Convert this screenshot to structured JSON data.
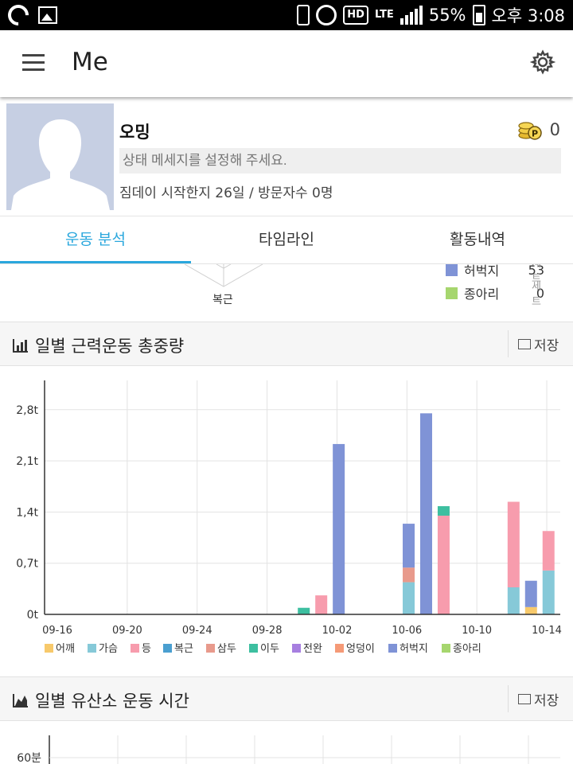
{
  "status_bar": {
    "battery": "55%",
    "time": "오후 3:08",
    "network": "LTE"
  },
  "app_bar": {
    "title": "Me"
  },
  "profile": {
    "name": "오밍",
    "points": "0",
    "status_placeholder": "상태 메세지를 설정해 주세요.",
    "subtitle": "짐데이 시작한지 26일  / 방문자수 0명"
  },
  "tabs": [
    {
      "label": "운동 분석",
      "active": true
    },
    {
      "label": "타임라인",
      "active": false
    },
    {
      "label": "활동내역",
      "active": false
    }
  ],
  "partial_section": {
    "radar_label": "복근",
    "legend": [
      {
        "name": "허벅지",
        "count": "53",
        "unit": "세트",
        "color": "#7f93d6"
      },
      {
        "name": "종아리",
        "count": "0",
        "unit": "세트",
        "color": "#a6d66e"
      }
    ]
  },
  "section1": {
    "title": "일별 근력운동 총중량",
    "save_label": "저장"
  },
  "section2": {
    "title": "일별 유산소 운동 시간",
    "save_label": "저장",
    "first_tick": "60분"
  },
  "chart_data": {
    "type": "bar",
    "stacked": true,
    "x": [
      "09-16",
      "09-17",
      "09-18",
      "09-19",
      "09-20",
      "09-21",
      "09-22",
      "09-23",
      "09-24",
      "09-25",
      "09-26",
      "09-27",
      "09-28",
      "09-29",
      "09-30",
      "10-01",
      "10-02",
      "10-03",
      "10-04",
      "10-05",
      "10-06",
      "10-07",
      "10-08",
      "10-09",
      "10-10",
      "10-11",
      "10-12",
      "10-13",
      "10-14",
      "10-15"
    ],
    "x_tick_labels": [
      "09-16",
      "09-20",
      "09-24",
      "09-28",
      "10-02",
      "10-06",
      "10-10",
      "10-14"
    ],
    "y_tick_labels": [
      "0t",
      "0,7t",
      "1,4t",
      "2,1t",
      "2,8t"
    ],
    "ylim": [
      0,
      3.2
    ],
    "grid": true,
    "legend_position": "bottom",
    "series": [
      {
        "name": "어깨",
        "color": "#f7c96b",
        "values": [
          0,
          0,
          0,
          0,
          0,
          0,
          0,
          0,
          0,
          0,
          0,
          0,
          0,
          0,
          0,
          0,
          0,
          0,
          0,
          0,
          0,
          0,
          0,
          0,
          0,
          0,
          0,
          0.1,
          0,
          0
        ]
      },
      {
        "name": "가슴",
        "color": "#86c9d8",
        "values": [
          0,
          0,
          0,
          0,
          0,
          0,
          0,
          0,
          0,
          0,
          0,
          0,
          0,
          0,
          0,
          0,
          0,
          0,
          0,
          0,
          0.44,
          0,
          0,
          0,
          0,
          0,
          0.37,
          0,
          0.6,
          0
        ]
      },
      {
        "name": "등",
        "color": "#f79cad",
        "values": [
          0,
          0,
          0,
          0,
          0,
          0,
          0,
          0,
          0,
          0,
          0,
          0,
          0,
          0,
          0,
          0.26,
          0,
          0,
          0,
          0,
          0,
          0,
          1.35,
          0,
          0,
          0,
          1.17,
          0,
          0.54,
          0
        ]
      },
      {
        "name": "복근",
        "color": "#4a9fd0",
        "values": [
          0,
          0,
          0,
          0,
          0,
          0,
          0,
          0,
          0,
          0,
          0,
          0,
          0,
          0,
          0,
          0,
          0,
          0,
          0,
          0,
          0,
          0,
          0,
          0,
          0,
          0,
          0,
          0,
          0,
          0
        ]
      },
      {
        "name": "삼두",
        "color": "#e89a8c",
        "values": [
          0,
          0,
          0,
          0,
          0,
          0,
          0,
          0,
          0,
          0,
          0,
          0,
          0,
          0,
          0,
          0,
          0,
          0,
          0,
          0,
          0.2,
          0,
          0,
          0,
          0,
          0,
          0,
          0,
          0,
          0
        ]
      },
      {
        "name": "이두",
        "color": "#3dbfa0",
        "values": [
          0,
          0,
          0,
          0,
          0,
          0,
          0,
          0,
          0,
          0,
          0,
          0,
          0,
          0,
          0.09,
          0,
          0,
          0,
          0,
          0,
          0,
          0,
          0.13,
          0,
          0,
          0,
          0,
          0,
          0,
          0
        ]
      },
      {
        "name": "전완",
        "color": "#a77fe0",
        "values": [
          0,
          0,
          0,
          0,
          0,
          0,
          0,
          0,
          0,
          0,
          0,
          0,
          0,
          0,
          0,
          0,
          0,
          0,
          0,
          0,
          0,
          0,
          0,
          0,
          0,
          0,
          0,
          0,
          0,
          0
        ]
      },
      {
        "name": "엉덩이",
        "color": "#f59a77",
        "values": [
          0,
          0,
          0,
          0,
          0,
          0,
          0,
          0,
          0,
          0,
          0,
          0,
          0,
          0,
          0,
          0,
          0,
          0,
          0,
          0,
          0,
          0,
          0,
          0,
          0,
          0,
          0,
          0,
          0,
          0
        ]
      },
      {
        "name": "허벅지",
        "color": "#7f93d6",
        "values": [
          0,
          0,
          0,
          0,
          0,
          0,
          0,
          0,
          0,
          0,
          0,
          0,
          0,
          0,
          0,
          0,
          2.33,
          0,
          0,
          0,
          0.6,
          2.75,
          0,
          0,
          0,
          0,
          0,
          0.36,
          0,
          0
        ]
      },
      {
        "name": "종아리",
        "color": "#a6d66e",
        "values": [
          0,
          0,
          0,
          0,
          0,
          0,
          0,
          0,
          0,
          0,
          0,
          0,
          0,
          0,
          0,
          0,
          0,
          0,
          0,
          0,
          0,
          0,
          0,
          0,
          0,
          0,
          0,
          0,
          0,
          0
        ]
      }
    ]
  }
}
